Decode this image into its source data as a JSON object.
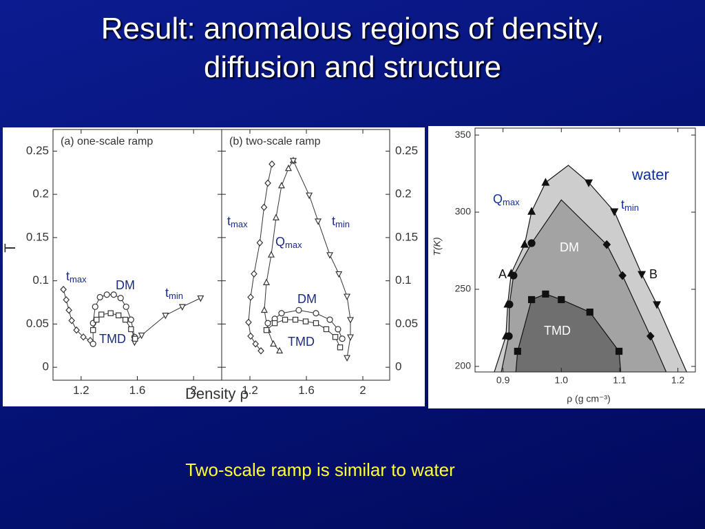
{
  "slide": {
    "title": "Result: anomalous regions of density, diffusion and structure",
    "caption": "Two-scale ramp is similar to water"
  },
  "chart_data": [
    {
      "type": "line",
      "title": "(a) one-scale ramp",
      "xlabel": "Density ρ",
      "ylabel": "T",
      "xlim": [
        1.0,
        2.2
      ],
      "ylim": [
        -0.015,
        0.275
      ],
      "xticks": [
        1.2,
        1.6,
        2
      ],
      "yticks": [
        0,
        0.05,
        0.1,
        0.15,
        0.2,
        0.25
      ],
      "series": [
        {
          "marker": "diamond",
          "x": [
            1.074,
            1.094,
            1.113,
            1.133,
            1.167,
            1.216,
            1.265
          ],
          "values": [
            0.09,
            0.078,
            0.066,
            0.054,
            0.043,
            0.035,
            0.031
          ]
        },
        {
          "marker": "triangle-down",
          "x": [
            1.58,
            1.63,
            1.8,
            1.92,
            2.05
          ],
          "values": [
            0.029,
            0.037,
            0.06,
            0.07,
            0.08
          ]
        },
        {
          "marker": "circle",
          "x": [
            1.285,
            1.285,
            1.3,
            1.334,
            1.383,
            1.432,
            1.481,
            1.52,
            1.555,
            1.58
          ],
          "values": [
            0.027,
            0.051,
            0.07,
            0.081,
            0.084,
            0.084,
            0.08,
            0.07,
            0.055,
            0.035
          ]
        },
        {
          "marker": "square",
          "x": [
            1.285,
            1.31,
            1.344,
            1.41,
            1.466,
            1.515,
            1.555,
            1.584
          ],
          "values": [
            0.043,
            0.055,
            0.061,
            0.0625,
            0.06,
            0.055,
            0.044,
            0.033
          ]
        }
      ],
      "annotations": [
        {
          "text": "t",
          "sub": "max",
          "color": "#1a2a8a"
        },
        {
          "text": "DM",
          "color": "#1a2a8a"
        },
        {
          "text": "t",
          "sub": "min",
          "color": "#1a2a8a"
        },
        {
          "text": "TMD",
          "color": "#1a2a8a"
        }
      ]
    },
    {
      "type": "line",
      "title": "(b) two-scale ramp",
      "xlim": [
        1.0,
        2.19
      ],
      "ylim": [
        -0.015,
        0.275
      ],
      "xticks": [
        1.2,
        1.6,
        2
      ],
      "yticks": [
        0,
        0.05,
        0.1,
        0.15,
        0.2,
        0.25
      ],
      "series": [
        {
          "marker": "diamond",
          "x": [
            1.356,
            1.327,
            1.3,
            1.27,
            1.229,
            1.205,
            1.19,
            1.205,
            1.24,
            1.278
          ],
          "values": [
            0.235,
            0.213,
            0.185,
            0.144,
            0.108,
            0.081,
            0.052,
            0.036,
            0.027,
            0.019
          ]
        },
        {
          "marker": "triangle-up",
          "x": [
            1.507,
            1.473,
            1.424,
            1.385,
            1.351,
            1.317,
            1.302,
            1.327,
            1.366,
            1.41
          ],
          "values": [
            0.239,
            0.23,
            0.21,
            0.173,
            0.13,
            0.098,
            0.066,
            0.043,
            0.027,
            0.019
          ]
        },
        {
          "marker": "triangle-down",
          "x": [
            1.507,
            1.62,
            1.683,
            1.766,
            1.83,
            1.888,
            1.912,
            1.912,
            1.888
          ],
          "values": [
            0.239,
            0.199,
            0.169,
            0.13,
            0.108,
            0.082,
            0.055,
            0.035,
            0.011
          ]
        },
        {
          "marker": "circle",
          "x": [
            1.327,
            1.376,
            1.424,
            1.546,
            1.668,
            1.766,
            1.824,
            1.854
          ],
          "values": [
            0.051,
            0.056,
            0.0625,
            0.066,
            0.0625,
            0.055,
            0.044,
            0.033
          ]
        },
        {
          "marker": "square",
          "x": [
            1.317,
            1.376,
            1.449,
            1.522,
            1.595,
            1.668,
            1.741,
            1.805,
            1.839
          ],
          "values": [
            0.043,
            0.051,
            0.055,
            0.055,
            0.053,
            0.051,
            0.044,
            0.035,
            0.023
          ]
        }
      ],
      "annotations": [
        {
          "text": "t",
          "sub": "max",
          "color": "#1a2a8a"
        },
        {
          "text": "Q",
          "sub": "max",
          "color": "#1a2a8a"
        },
        {
          "text": "t",
          "sub": "min",
          "color": "#1a2a8a"
        },
        {
          "text": "DM",
          "color": "#1a2a8a"
        },
        {
          "text": "TMD",
          "color": "#1a2a8a"
        }
      ]
    },
    {
      "type": "area",
      "xlabel": "ρ (g cm⁻³)",
      "ylabel": "T(K)",
      "xlim": [
        0.852,
        1.23
      ],
      "ylim": [
        196.4,
        354.5
      ],
      "xticks": [
        0.9,
        {
          "value": 1,
          "label": "1.0"
        },
        1.1,
        1.2
      ],
      "yticks": [
        200,
        250,
        300,
        350
      ],
      "series": [
        {
          "fill": "#cdcdcd",
          "x": [
            0.885,
            0.905,
            0.908,
            0.914,
            0.937,
            0.949,
            0.973,
            1.012,
            1.047,
            1.091,
            1.138,
            1.164,
            1.215
          ],
          "values": [
            196.4,
            219.6,
            240.2,
            260.3,
            279,
            300.4,
            319.2,
            330.4,
            319.2,
            300.4,
            259.8,
            240.2,
            196.4
          ]
        },
        {
          "fill": "#a3a3a3",
          "x": [
            0.897,
            0.91,
            0.911,
            0.918,
            0.949,
            1.0,
            1.078,
            1.105,
            1.153,
            1.18
          ],
          "values": [
            196.4,
            219.6,
            240.2,
            258.9,
            279.9,
            308,
            279,
            258.9,
            219.6,
            196.4
          ]
        },
        {
          "fill": "#6f6f6f",
          "x": [
            0.922,
            0.925,
            0.949,
            0.973,
            1.0,
            1.049,
            1.099,
            1.102
          ],
          "values": [
            196.4,
            209.8,
            243.3,
            246.9,
            243.3,
            235.2,
            209.8,
            196.4
          ]
        },
        {
          "marker": "triangle-up",
          "x": [
            0.905,
            0.908,
            0.914,
            0.937,
            0.949,
            0.973
          ],
          "values": [
            219.6,
            240.2,
            260.3,
            279,
            300.4,
            319.2
          ]
        },
        {
          "marker": "triangle-down",
          "x": [
            1.047,
            1.091,
            1.138,
            1.164
          ],
          "values": [
            319.2,
            300.4,
            259.8,
            240.2
          ]
        },
        {
          "marker": "circle",
          "x": [
            0.91,
            0.911,
            0.918,
            0.949
          ],
          "values": [
            219.6,
            240.2,
            258.9,
            279.9
          ]
        },
        {
          "marker": "diamond",
          "x": [
            1.078,
            1.105,
            1.153
          ],
          "values": [
            279,
            258.9,
            219.6
          ]
        },
        {
          "marker": "square",
          "x": [
            0.925,
            0.949,
            0.973,
            1.0,
            1.049,
            1.099
          ],
          "values": [
            209.8,
            243.3,
            246.9,
            243.3,
            235.2,
            209.8
          ]
        }
      ],
      "annotations": [
        {
          "text": "water",
          "color": "#1030a0"
        },
        {
          "text": "Q",
          "sub": "max",
          "color": "#1030a0"
        },
        {
          "text": "t",
          "sub": "min",
          "color": "#1030a0"
        },
        {
          "text": "DM",
          "color": "#ffffff"
        },
        {
          "text": "TMD",
          "color": "#ffffff"
        },
        {
          "text": "A",
          "color": "#111111"
        },
        {
          "text": "B",
          "color": "#111111"
        }
      ]
    }
  ]
}
